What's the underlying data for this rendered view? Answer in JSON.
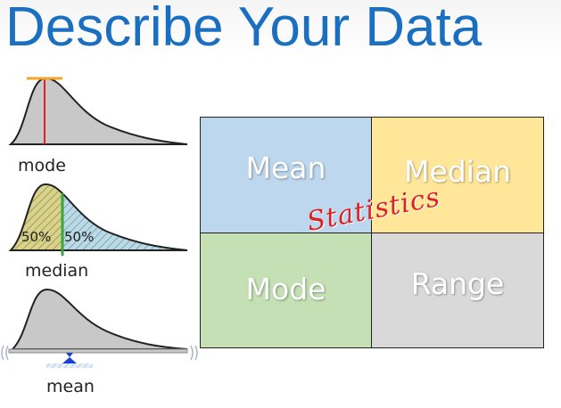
{
  "title": "Describe Your Data",
  "diagrams": {
    "mode_caption": "mode",
    "median_caption": "median",
    "median_left_pct": "50%",
    "median_right_pct": "50%",
    "mean_caption": "mean"
  },
  "grid": {
    "top_left": "Mean",
    "top_right": "Median",
    "bottom_left": "Mode",
    "bottom_right": "Range",
    "overlay": "Statistics"
  },
  "colors": {
    "title": "#1a6fc0",
    "mean_cell": "#bdd7ee",
    "median_cell": "#ffe699",
    "mode_cell": "#c5e0b4",
    "range_cell": "#d9d9d9",
    "overlay_text": "#e02020",
    "mode_line": "#e02020",
    "mode_cap": "#f5a623",
    "median_line": "#3aa53a",
    "mean_pivot": "#1a3fd0"
  }
}
